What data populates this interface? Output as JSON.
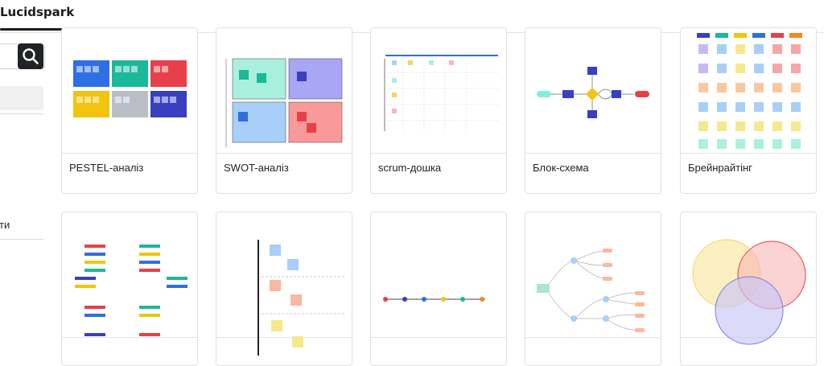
{
  "topbar": {
    "active_tab": "Lucidspark"
  },
  "sidebar": {
    "partial_label": "ти"
  },
  "templates": [
    {
      "label": "PESTEL-аналіз"
    },
    {
      "label": "SWOT-аналіз"
    },
    {
      "label": "scrum-дошка"
    },
    {
      "label": "Блок-схема"
    },
    {
      "label": "Брейнрайтінг"
    },
    {
      "label": ""
    },
    {
      "label": ""
    },
    {
      "label": ""
    },
    {
      "label": ""
    },
    {
      "label": ""
    }
  ],
  "colors": {
    "pestel": [
      "#2f6fe4",
      "#1bb89a",
      "#e8404a",
      "#f1c40f",
      "#b9bec6",
      "#3a3fbf"
    ],
    "swot": [
      "#aaf0de",
      "#a8a6f5",
      "#a8cff7",
      "#f99a9a"
    ]
  }
}
